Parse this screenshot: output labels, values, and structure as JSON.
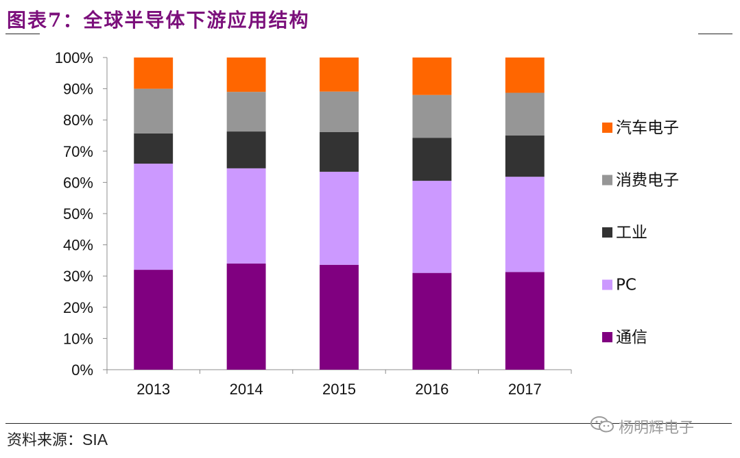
{
  "header": {
    "title": "图表7：全球半导体下游应用结构"
  },
  "footer": {
    "source_label": "资料来源：",
    "source_value": "SIA",
    "watermark": "杨明辉电子"
  },
  "colors": {
    "汽车电子": "#FF6600",
    "消费电子": "#969696",
    "工业": "#333333",
    "PC": "#CC99FF",
    "通信": "#800080"
  },
  "icons": {
    "watermark": "wechat-icon"
  },
  "chart_data": {
    "type": "bar",
    "stacked": true,
    "categories": [
      "2013",
      "2014",
      "2015",
      "2016",
      "2017"
    ],
    "series": [
      {
        "name": "通信",
        "values": [
          32,
          34,
          33.6,
          31,
          31.3
        ]
      },
      {
        "name": "PC",
        "values": [
          34,
          30.5,
          29.8,
          29.5,
          30.5
        ]
      },
      {
        "name": "工业",
        "values": [
          9.7,
          11.8,
          12.7,
          13.8,
          13.2
        ]
      },
      {
        "name": "消费电子",
        "values": [
          14.3,
          12.7,
          13,
          13.7,
          13.7
        ]
      },
      {
        "name": "汽车电子",
        "values": [
          10,
          11,
          10.9,
          12,
          11.3
        ]
      }
    ],
    "yticks": [
      "0%",
      "10%",
      "20%",
      "30%",
      "40%",
      "50%",
      "60%",
      "70%",
      "80%",
      "90%",
      "100%"
    ],
    "ylim": [
      0,
      100
    ],
    "grid": false,
    "legend_position": "right"
  }
}
